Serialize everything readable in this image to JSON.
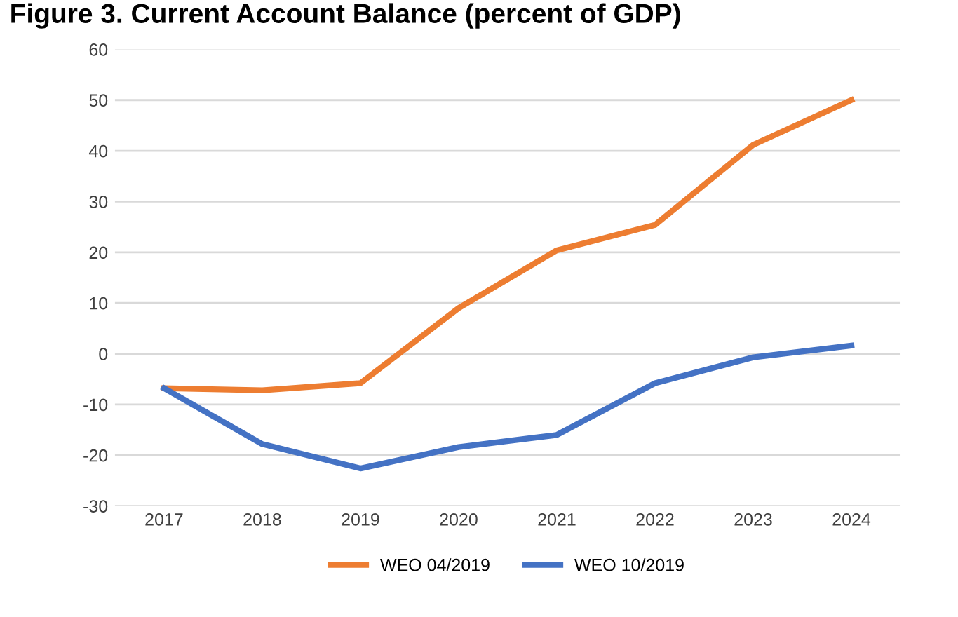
{
  "chart_data": {
    "type": "line",
    "title": "Figure 3. Current Account Balance (percent of GDP)",
    "categories": [
      "2017",
      "2018",
      "2019",
      "2020",
      "2021",
      "2022",
      "2023",
      "2024"
    ],
    "series": [
      {
        "name": "WEO 04/2019",
        "color": "#ed7d31",
        "values": [
          -6.8,
          -7.2,
          -5.8,
          9,
          20.4,
          25.4,
          41.2,
          50
        ]
      },
      {
        "name": "WEO 10/2019",
        "color": "#4472c4",
        "values": [
          -6.8,
          -17.8,
          -22.6,
          -18.4,
          -16,
          -5.8,
          -0.7,
          1.6
        ]
      }
    ],
    "ylim": [
      -30,
      60
    ],
    "yticks": [
      -30,
      -20,
      -10,
      0,
      10,
      20,
      30,
      40,
      50,
      60
    ],
    "grid": "y",
    "legend": "bottom",
    "marker": "none",
    "line_style": "solid"
  }
}
